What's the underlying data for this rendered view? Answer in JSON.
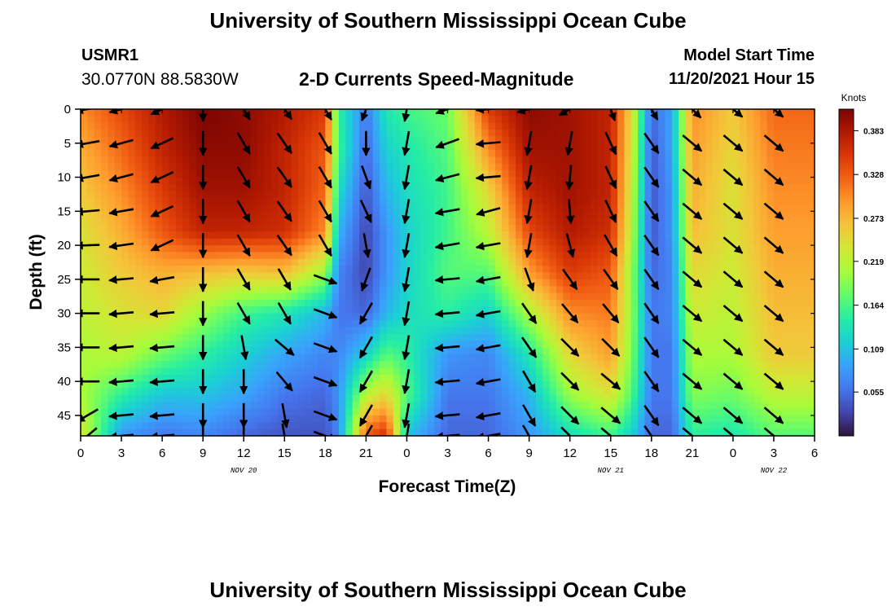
{
  "header": {
    "title": "University of Southern Mississippi Ocean Cube",
    "station_id": "USMR1",
    "station_coords": "30.0770N  88.5830W",
    "chart_title": "2-D Currents Speed-Magnitude",
    "model_label": "Model Start Time",
    "model_time": "11/20/2021 Hour 15"
  },
  "footer": {
    "title": "University of Southern Mississippi Ocean Cube"
  },
  "chart_data": {
    "type": "heatmap",
    "title": "2-D Currents Speed-Magnitude",
    "xlabel": "Forecast Time(Z)",
    "ylabel": "Depth (ft)",
    "x_tick_labels": [
      "0",
      "3",
      "6",
      "9",
      "12",
      "15",
      "18",
      "21",
      "0",
      "3",
      "6",
      "9",
      "12",
      "15",
      "18",
      "21",
      "0",
      "3",
      "6"
    ],
    "date_labels": [
      "NOV 20",
      "NOV 21",
      "NOV 22"
    ],
    "y_tick_labels": [
      "0",
      "5",
      "10",
      "15",
      "20",
      "25",
      "30",
      "35",
      "40",
      "45"
    ],
    "ylim": [
      0,
      48
    ],
    "colorbar": {
      "unit": "Knots",
      "tick_labels": [
        "0.055",
        "0.109",
        "0.164",
        "0.219",
        "0.273",
        "0.328",
        "0.383"
      ],
      "range": [
        0.0,
        0.41
      ]
    },
    "colors": [
      "#30123b",
      "#4145ab",
      "#4675ed",
      "#39a2fc",
      "#1bcfd4",
      "#24eca6",
      "#61fc6c",
      "#a4fc3b",
      "#d1e834",
      "#f3c63a",
      "#fe9b2d",
      "#f36315",
      "#d93806",
      "#b11901",
      "#7a0403"
    ],
    "speed_field": {
      "depths_ft": [
        0,
        6,
        12,
        18,
        24,
        30,
        36,
        42,
        48
      ],
      "times_h": [
        0,
        3,
        6,
        9,
        12,
        15,
        18,
        19,
        21,
        22.5,
        24,
        27,
        30,
        33,
        36,
        39,
        40.5,
        42,
        43.5,
        45,
        48,
        51
      ],
      "speed_kn": [
        [
          0.3,
          0.34,
          0.38,
          0.41,
          0.4,
          0.38,
          0.35,
          0.15,
          0.06,
          0.14,
          0.16,
          0.18,
          0.35,
          0.4,
          0.39,
          0.37,
          0.25,
          0.05,
          0.09,
          0.3,
          0.26,
          0.32
        ],
        [
          0.28,
          0.32,
          0.37,
          0.4,
          0.4,
          0.37,
          0.33,
          0.16,
          0.05,
          0.12,
          0.14,
          0.17,
          0.3,
          0.39,
          0.39,
          0.37,
          0.24,
          0.04,
          0.09,
          0.29,
          0.25,
          0.31
        ],
        [
          0.26,
          0.3,
          0.35,
          0.39,
          0.39,
          0.37,
          0.32,
          0.13,
          0.04,
          0.1,
          0.13,
          0.16,
          0.25,
          0.37,
          0.39,
          0.37,
          0.23,
          0.04,
          0.08,
          0.28,
          0.24,
          0.3
        ],
        [
          0.24,
          0.28,
          0.33,
          0.37,
          0.37,
          0.36,
          0.3,
          0.1,
          0.03,
          0.08,
          0.12,
          0.16,
          0.22,
          0.34,
          0.38,
          0.36,
          0.22,
          0.04,
          0.08,
          0.27,
          0.24,
          0.29
        ],
        [
          0.23,
          0.26,
          0.28,
          0.27,
          0.26,
          0.27,
          0.2,
          0.07,
          0.03,
          0.08,
          0.12,
          0.17,
          0.17,
          0.29,
          0.35,
          0.33,
          0.2,
          0.05,
          0.07,
          0.25,
          0.23,
          0.28
        ],
        [
          0.22,
          0.24,
          0.25,
          0.2,
          0.16,
          0.14,
          0.1,
          0.06,
          0.05,
          0.1,
          0.13,
          0.15,
          0.12,
          0.21,
          0.3,
          0.31,
          0.2,
          0.06,
          0.07,
          0.23,
          0.22,
          0.27
        ],
        [
          0.21,
          0.22,
          0.18,
          0.15,
          0.12,
          0.09,
          0.07,
          0.07,
          0.12,
          0.17,
          0.15,
          0.08,
          0.07,
          0.14,
          0.25,
          0.29,
          0.19,
          0.06,
          0.06,
          0.21,
          0.21,
          0.26
        ],
        [
          0.21,
          0.15,
          0.11,
          0.11,
          0.09,
          0.06,
          0.05,
          0.08,
          0.22,
          0.25,
          0.17,
          0.06,
          0.06,
          0.1,
          0.2,
          0.24,
          0.17,
          0.06,
          0.06,
          0.19,
          0.18,
          0.22
        ],
        [
          0.24,
          0.08,
          0.06,
          0.07,
          0.05,
          0.04,
          0.04,
          0.07,
          0.33,
          0.36,
          0.11,
          0.05,
          0.05,
          0.08,
          0.13,
          0.16,
          0.12,
          0.05,
          0.05,
          0.15,
          0.14,
          0.17
        ]
      ]
    },
    "vectors": {
      "times_h": [
        0.5,
        3,
        6,
        9,
        12,
        15,
        18,
        21,
        24,
        27,
        30,
        33,
        36,
        39,
        42,
        45,
        48,
        51
      ],
      "depths_ft": [
        0,
        5,
        10,
        15,
        20,
        25,
        30,
        35,
        40,
        45,
        48
      ],
      "direction_deg": [
        [
          170,
          165,
          155,
          90,
          60,
          55,
          60,
          110,
          100,
          160,
          175,
          165,
          150,
          70,
          60,
          45,
          40,
          40
        ],
        [
          170,
          165,
          155,
          90,
          60,
          55,
          60,
          90,
          100,
          160,
          175,
          100,
          100,
          65,
          55,
          40,
          40,
          40
        ],
        [
          170,
          165,
          155,
          90,
          60,
          55,
          60,
          70,
          100,
          165,
          175,
          100,
          95,
          65,
          55,
          40,
          40,
          40
        ],
        [
          175,
          170,
          155,
          90,
          60,
          55,
          60,
          65,
          100,
          170,
          165,
          100,
          85,
          65,
          55,
          40,
          40,
          40
        ],
        [
          178,
          172,
          155,
          90,
          60,
          55,
          60,
          80,
          100,
          170,
          170,
          100,
          75,
          60,
          55,
          40,
          40,
          40
        ],
        [
          180,
          175,
          170,
          90,
          60,
          60,
          20,
          110,
          100,
          175,
          170,
          70,
          55,
          55,
          55,
          40,
          40,
          40
        ],
        [
          180,
          175,
          175,
          90,
          60,
          60,
          20,
          120,
          100,
          175,
          170,
          55,
          50,
          50,
          55,
          40,
          40,
          40
        ],
        [
          180,
          175,
          175,
          90,
          80,
          40,
          20,
          120,
          100,
          175,
          170,
          55,
          45,
          45,
          55,
          40,
          40,
          40
        ],
        [
          180,
          175,
          175,
          90,
          90,
          50,
          20,
          120,
          100,
          175,
          170,
          60,
          45,
          40,
          55,
          40,
          40,
          40
        ],
        [
          150,
          175,
          175,
          90,
          90,
          80,
          20,
          120,
          100,
          175,
          170,
          60,
          45,
          40,
          55,
          40,
          40,
          40
        ],
        [
          140,
          175,
          175,
          90,
          90,
          80,
          20,
          120,
          100,
          175,
          170,
          60,
          45,
          40,
          55,
          40,
          40,
          40
        ]
      ]
    }
  }
}
